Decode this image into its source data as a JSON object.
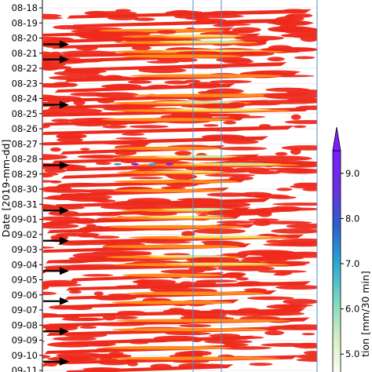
{
  "chart_data": {
    "type": "heatmap",
    "ylabel": "Date [2019-mm-dd]",
    "y_ticks": [
      "08-18",
      "08-19",
      "08-20",
      "08-21",
      "08-22",
      "08-23",
      "08-24",
      "08-25",
      "08-26",
      "08-27",
      "08-28",
      "08-29",
      "08-30",
      "08-31",
      "09-01",
      "09-02",
      "09-03",
      "09-04",
      "09-05",
      "09-06",
      "09-07",
      "09-08",
      "09-09",
      "09-10",
      "09-11"
    ],
    "colorbar": {
      "label": "tion [mm/30 min]",
      "ticks": [
        5.0,
        6.0,
        7.0,
        8.0,
        9.0
      ],
      "range": [
        4.5,
        9.5
      ],
      "extend": "max",
      "colors": [
        "#ffffff",
        "#d7f0c0",
        "#7fd8c0",
        "#2aa9d4",
        "#2b5fd0",
        "#6a2fe0",
        "#7a1fff"
      ]
    },
    "arrow_dates": [
      "08-20",
      "08-21",
      "08-24",
      "08-28",
      "08-31",
      "09-02",
      "09-04",
      "09-06",
      "09-08",
      "09-10"
    ],
    "vertical_lines": [
      "blue",
      "blue",
      "blue"
    ],
    "bands": [
      {
        "date": "08-18.3",
        "intensity": 3
      },
      {
        "date": "08-18.9",
        "intensity": 3
      },
      {
        "date": "08-19.5",
        "intensity": 4
      },
      {
        "date": "08-19.9",
        "intensity": 5
      },
      {
        "date": "08-20.3",
        "intensity": 6
      },
      {
        "date": "08-20.9",
        "intensity": 5
      },
      {
        "date": "08-21.2",
        "intensity": 4
      },
      {
        "date": "08-21.8",
        "intensity": 3
      },
      {
        "date": "08-22.5",
        "intensity": 4
      },
      {
        "date": "08-23.2",
        "intensity": 3
      },
      {
        "date": "08-23.8",
        "intensity": 4
      },
      {
        "date": "08-24.3",
        "intensity": 6
      },
      {
        "date": "08-24.8",
        "intensity": 5
      },
      {
        "date": "08-25.4",
        "intensity": 4
      },
      {
        "date": "08-26.0",
        "intensity": 3
      },
      {
        "date": "08-26.7",
        "intensity": 3
      },
      {
        "date": "08-27.3",
        "intensity": 4
      },
      {
        "date": "08-27.9",
        "intensity": 6
      },
      {
        "date": "08-28.4",
        "intensity": 8
      },
      {
        "date": "08-28.9",
        "intensity": 5
      },
      {
        "date": "08-29.5",
        "intensity": 4
      },
      {
        "date": "08-30.1",
        "intensity": 4
      },
      {
        "date": "08-30.8",
        "intensity": 3
      },
      {
        "date": "08-31.4",
        "intensity": 6
      },
      {
        "date": "08-31.9",
        "intensity": 5
      },
      {
        "date": "09-01.5",
        "intensity": 4
      },
      {
        "date": "09-02.2",
        "intensity": 5
      },
      {
        "date": "09-02.8",
        "intensity": 4
      },
      {
        "date": "09-03.5",
        "intensity": 6
      },
      {
        "date": "09-04.0",
        "intensity": 5
      },
      {
        "date": "09-04.7",
        "intensity": 4
      },
      {
        "date": "09-05.3",
        "intensity": 3
      },
      {
        "date": "09-05.9",
        "intensity": 4
      },
      {
        "date": "09-06.5",
        "intensity": 4
      },
      {
        "date": "09-07.1",
        "intensity": 3
      },
      {
        "date": "09-07.7",
        "intensity": 4
      },
      {
        "date": "09-08.3",
        "intensity": 4
      },
      {
        "date": "09-08.9",
        "intensity": 3
      },
      {
        "date": "09-09.5",
        "intensity": 4
      },
      {
        "date": "09-10.2",
        "intensity": 4
      },
      {
        "date": "09-10.8",
        "intensity": 3
      }
    ]
  }
}
